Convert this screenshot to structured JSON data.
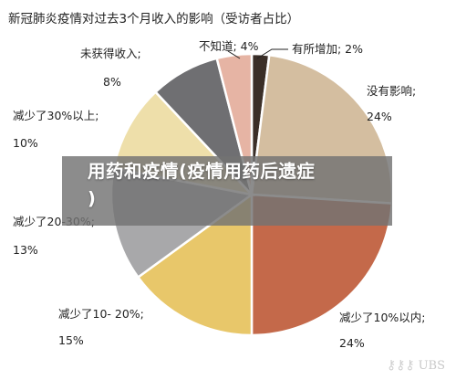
{
  "chart_data": {
    "type": "pie",
    "title": "新冠肺炎疫情对过去3个月收入的影响（受访者占比）",
    "slices": [
      {
        "label": "有所增加; 2%",
        "value": 2,
        "color": "#3b2f28"
      },
      {
        "label": "没有影响;",
        "pct_label": "24%",
        "value": 24,
        "color": "#d4bea0"
      },
      {
        "label": "减少了10%以内;",
        "pct_label": "24%",
        "value": 24,
        "color": "#c4694a"
      },
      {
        "label": "减少了10- 20%;",
        "pct_label": "15%",
        "value": 15,
        "color": "#e8c76a"
      },
      {
        "label": "减少了20-30%;",
        "pct_label": "13%",
        "value": 13,
        "color": "#a8a8aa"
      },
      {
        "label": "减少了30%以上;",
        "pct_label": "10%",
        "value": 10,
        "color": "#eedfaa"
      },
      {
        "label": "未获得收入;",
        "pct_label": "8%",
        "value": 8,
        "color": "#6f6f72"
      },
      {
        "label": "不知道; 4%",
        "value": 4,
        "color": "#e6b4a4"
      }
    ]
  },
  "overlay": {
    "line1": "用药和疫情(疫情用药后遗症",
    "line2": ")"
  },
  "watermark": {
    "brand": "UBS",
    "icon": "ubs-keys-icon"
  }
}
